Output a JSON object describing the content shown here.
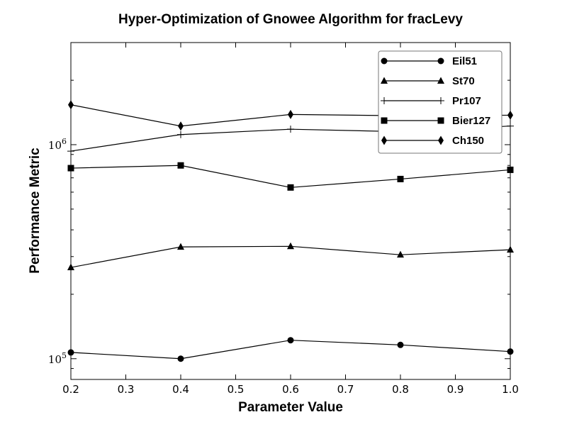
{
  "chart_data": {
    "type": "line",
    "title": "Hyper-Optimization of Gnowee Algorithm for fracLevy",
    "xlabel": "Parameter Value",
    "ylabel": "Performance Metric",
    "xlim": [
      0.2,
      1.0
    ],
    "ylim": [
      80000,
      3000000
    ],
    "yscale": "log",
    "grid": false,
    "legend_position": "top-right",
    "x_ticks": [
      0.2,
      0.3,
      0.4,
      0.5,
      0.6,
      0.7,
      0.8,
      0.9,
      1.0
    ],
    "x_tick_labels": [
      "0.2",
      "0.3",
      "0.4",
      "0.5",
      "0.6",
      "0.7",
      "0.8",
      "0.9",
      "1.0"
    ],
    "y_major_ticks": [
      {
        "value": 100000,
        "base": "10",
        "exp": "5"
      },
      {
        "value": 1000000,
        "base": "10",
        "exp": "6"
      }
    ],
    "x": [
      0.2,
      0.4,
      0.6,
      0.8,
      1.0
    ],
    "series": [
      {
        "name": "Eil51",
        "marker": "circle",
        "values": [
          107000,
          100000,
          122000,
          116000,
          108000
        ]
      },
      {
        "name": "St70",
        "marker": "triangle",
        "values": [
          267000,
          333000,
          335000,
          306000,
          323000
        ]
      },
      {
        "name": "Pr107",
        "marker": "plus",
        "values": [
          933000,
          1115000,
          1181000,
          1150000,
          1222000
        ]
      },
      {
        "name": "Bier127",
        "marker": "square",
        "values": [
          777000,
          800000,
          631000,
          691000,
          763000
        ]
      },
      {
        "name": "Ch150",
        "marker": "diamond",
        "values": [
          1536000,
          1222000,
          1384000,
          1366000,
          1373000
        ]
      }
    ],
    "colors": {
      "line": "#000000",
      "legend_frame": "#777777"
    }
  }
}
